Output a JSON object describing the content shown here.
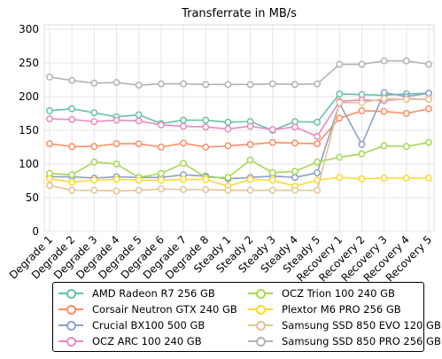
{
  "chart_data": {
    "type": "line",
    "title": "Transferrate in MB/s",
    "xlabel": "",
    "ylabel": "",
    "ylim": [
      0,
      300
    ],
    "yticks": [
      0,
      50,
      100,
      150,
      200,
      250,
      300
    ],
    "grid": true,
    "legend_position": "bottom",
    "categories": [
      "Degrade 1",
      "Degrade 2",
      "Degrade 3",
      "Degrade 4",
      "Degrade 5",
      "Degrade 6",
      "Degrade 7",
      "Degrade 8",
      "Steady 1",
      "Steady 2",
      "Steady 3",
      "Steady 4",
      "Steady 5",
      "Recovery 1",
      "Recovery 2",
      "Recovery 3",
      "Recovery 4",
      "Recovery 5"
    ],
    "series": [
      {
        "name": "AMD Radeon R7 256 GB",
        "color": "#66c2a5",
        "values": [
          179,
          182,
          176,
          170,
          173,
          160,
          165,
          165,
          162,
          163,
          150,
          163,
          162,
          204,
          203,
          202,
          204,
          205
        ]
      },
      {
        "name": "Corsair Neutron GTX 240 GB",
        "color": "#fc8d62",
        "values": [
          130,
          126,
          126,
          130,
          130,
          125,
          131,
          125,
          127,
          129,
          132,
          131,
          130,
          168,
          179,
          178,
          175,
          182
        ]
      },
      {
        "name": "Crucial BX100 500 GB",
        "color": "#8da0cb",
        "values": [
          81,
          81,
          79,
          81,
          80,
          80,
          84,
          82,
          78,
          80,
          82,
          80,
          87,
          190,
          129,
          206,
          200,
          205
        ]
      },
      {
        "name": "OCZ ARC 100 240 GB",
        "color": "#e78ac3",
        "values": [
          167,
          166,
          163,
          165,
          164,
          158,
          156,
          155,
          152,
          156,
          151,
          155,
          141,
          193,
          195,
          194,
          197,
          196
        ]
      },
      {
        "name": "OCZ Trion 100 240 GB",
        "color": "#a6d854",
        "values": [
          86,
          84,
          103,
          100,
          80,
          86,
          101,
          80,
          80,
          106,
          87,
          89,
          103,
          110,
          115,
          127,
          126,
          132
        ]
      },
      {
        "name": "Plextor M6 PRO 256 GB",
        "color": "#ffd92f",
        "values": [
          78,
          73,
          76,
          77,
          76,
          76,
          77,
          77,
          67,
          77,
          76,
          67,
          76,
          80,
          78,
          79,
          79,
          79
        ]
      },
      {
        "name": "Samsung SSD 850 EVO 120 GB",
        "color": "#e5c494",
        "values": [
          68,
          61,
          61,
          60,
          61,
          63,
          62,
          62,
          61,
          61,
          61,
          61,
          61,
          191,
          191,
          197,
          196,
          196
        ]
      },
      {
        "name": "Samsung SSD 850 PRO 256 GB",
        "color": "#b3b3b3",
        "values": [
          229,
          224,
          220,
          221,
          217,
          219,
          219,
          218,
          218,
          218,
          219,
          218,
          219,
          248,
          248,
          253,
          253,
          248
        ]
      }
    ]
  }
}
